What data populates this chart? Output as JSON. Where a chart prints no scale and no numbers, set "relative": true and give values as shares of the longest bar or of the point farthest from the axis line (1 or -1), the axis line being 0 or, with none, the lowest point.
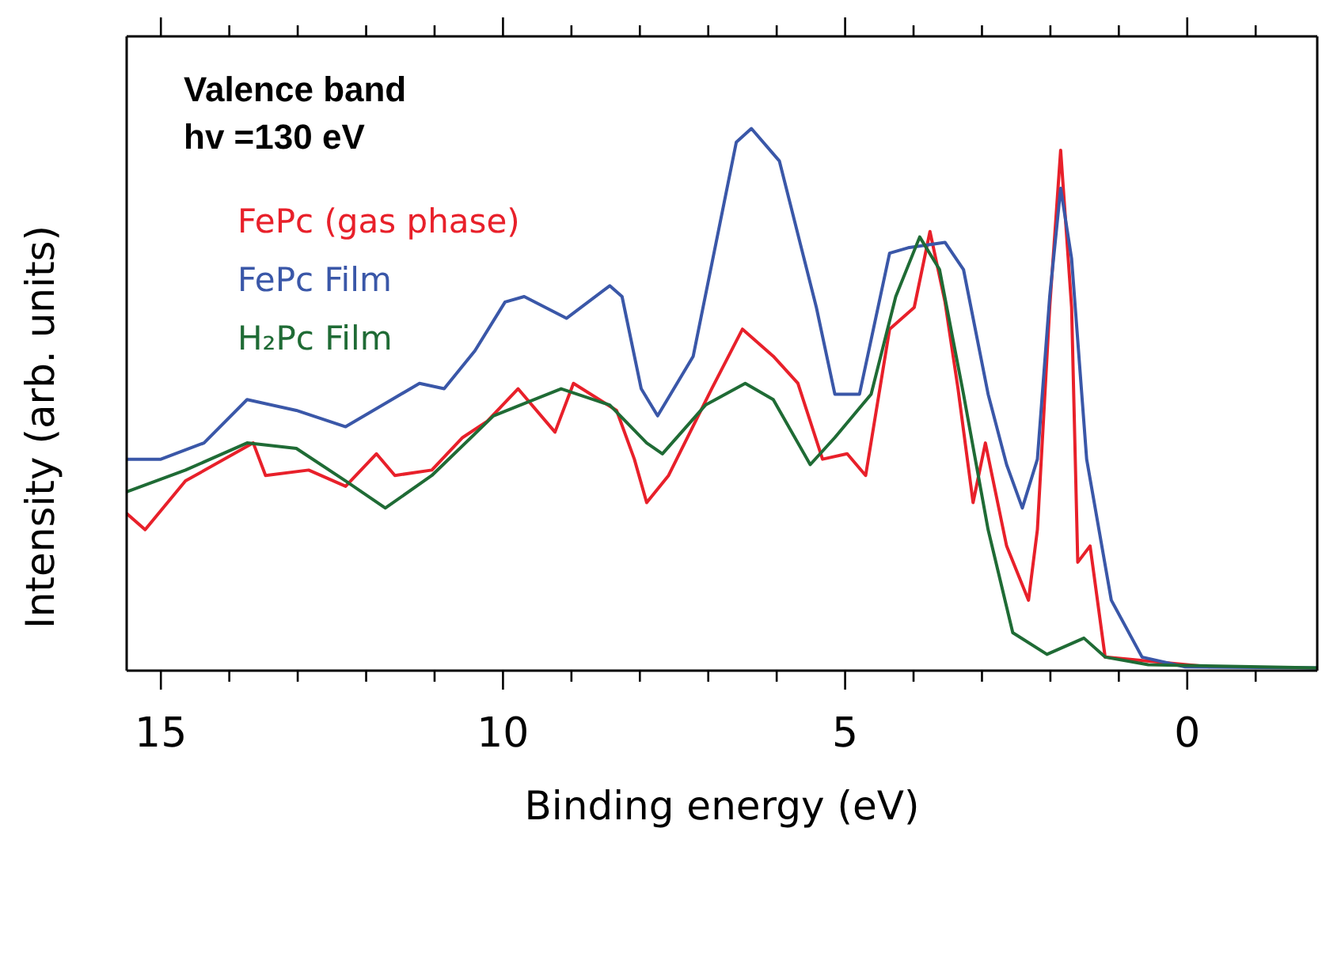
{
  "chart_data": {
    "type": "line",
    "relative": true,
    "xlabel": "Binding energy (eV)",
    "ylabel": "Intensity (arb. units)",
    "annotations": [
      "Valence band",
      "hv =130 eV"
    ],
    "xlim": [
      15.5,
      -1.9
    ],
    "xticks": [
      15,
      {
        "value": 14,
        "label": null
      },
      {
        "value": 13,
        "label": null
      },
      {
        "value": 12,
        "label": null
      },
      {
        "value": 11,
        "label": null
      },
      10,
      {
        "value": 9,
        "label": null
      },
      {
        "value": 8,
        "label": null
      },
      {
        "value": 7,
        "label": null
      },
      {
        "value": 6,
        "label": null
      },
      5,
      {
        "value": 4,
        "label": null
      },
      {
        "value": 3,
        "label": null
      },
      {
        "value": 2,
        "label": null
      },
      {
        "value": 1,
        "label": null
      },
      0,
      {
        "value": -1,
        "label": null
      }
    ],
    "legend": "top left",
    "marker": "none",
    "line_style": "solid",
    "series": [
      {
        "name": "FePc (gas phase)",
        "color": "#e8202a",
        "x": [
          15.5,
          15.23,
          14.64,
          13.65,
          13.47,
          12.84,
          12.3,
          11.85,
          11.58,
          11.04,
          10.59,
          10.23,
          9.78,
          9.24,
          8.97,
          8.34,
          8.08,
          7.9,
          7.58,
          6.95,
          6.5,
          6.05,
          5.69,
          5.33,
          4.97,
          4.7,
          4.35,
          3.99,
          3.76,
          3.54,
          3.35,
          3.13,
          2.95,
          2.64,
          2.32,
          2.19,
          2.01,
          1.85,
          1.69,
          1.6,
          1.42,
          1.2,
          -0.33
        ],
        "values": [
          0.29,
          0.26,
          0.35,
          0.42,
          0.36,
          0.37,
          0.34,
          0.4,
          0.36,
          0.37,
          0.43,
          0.46,
          0.52,
          0.44,
          0.53,
          0.48,
          0.39,
          0.31,
          0.36,
          0.52,
          0.63,
          0.58,
          0.53,
          0.39,
          0.4,
          0.36,
          0.63,
          0.67,
          0.81,
          0.68,
          0.52,
          0.31,
          0.42,
          0.23,
          0.13,
          0.26,
          0.67,
          0.96,
          0.67,
          0.2,
          0.23,
          0.025,
          0.007
        ]
      },
      {
        "name": "FePc Film",
        "color": "#3a57a8",
        "x": [
          15.5,
          15.0,
          14.37,
          13.74,
          13.02,
          12.3,
          11.22,
          10.86,
          10.41,
          9.97,
          9.69,
          9.07,
          8.44,
          8.26,
          7.98,
          7.74,
          7.22,
          6.59,
          6.37,
          5.96,
          5.42,
          5.15,
          4.79,
          4.35,
          4.08,
          3.54,
          3.27,
          2.91,
          2.64,
          2.41,
          2.19,
          2.01,
          1.85,
          1.69,
          1.47,
          1.11,
          0.66,
          0.03,
          -1.9
        ],
        "values": [
          0.39,
          0.39,
          0.42,
          0.5,
          0.48,
          0.45,
          0.53,
          0.52,
          0.59,
          0.68,
          0.69,
          0.65,
          0.71,
          0.69,
          0.52,
          0.47,
          0.58,
          0.975,
          1.0,
          0.94,
          0.67,
          0.51,
          0.51,
          0.77,
          0.78,
          0.79,
          0.74,
          0.51,
          0.38,
          0.3,
          0.39,
          0.69,
          0.89,
          0.76,
          0.39,
          0.13,
          0.025,
          0.007,
          0.005
        ]
      },
      {
        "name": "H₂Pc Film",
        "color": "#1f6b35",
        "x": [
          15.5,
          14.64,
          13.74,
          13.02,
          12.3,
          11.72,
          11.04,
          10.14,
          9.15,
          8.44,
          7.9,
          7.67,
          7.04,
          6.46,
          6.05,
          5.51,
          5.15,
          4.62,
          4.26,
          3.91,
          3.62,
          3.27,
          2.91,
          2.55,
          2.05,
          1.51,
          1.2,
          0.57,
          -1.9
        ],
        "values": [
          0.33,
          0.37,
          0.42,
          0.41,
          0.35,
          0.3,
          0.36,
          0.47,
          0.52,
          0.49,
          0.42,
          0.4,
          0.49,
          0.53,
          0.5,
          0.38,
          0.43,
          0.51,
          0.69,
          0.8,
          0.74,
          0.51,
          0.26,
          0.07,
          0.03,
          0.06,
          0.025,
          0.011,
          0.005
        ]
      }
    ]
  }
}
